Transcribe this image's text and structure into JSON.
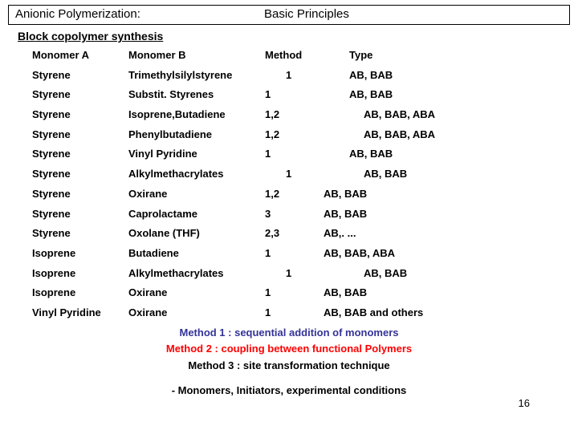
{
  "header": {
    "left": "Anionic Polymerization:",
    "right": "Basic Principles"
  },
  "subtitle": "Block copolymer synthesis",
  "table": {
    "headers": [
      "Monomer A",
      "Monomer B",
      "Method",
      "Type"
    ],
    "rows": [
      [
        "Styrene",
        "Trimethylsilylstyrene",
        "1",
        "AB, BAB"
      ],
      [
        "Styrene",
        "Substit. Styrenes",
        "1",
        "AB, BAB"
      ],
      [
        "Styrene",
        "Isoprene,Butadiene",
        "1,2",
        "AB, BAB, ABA"
      ],
      [
        "Styrene",
        "Phenylbutadiene",
        "1,2",
        "AB, BAB, ABA"
      ],
      [
        "Styrene",
        "Vinyl Pyridine",
        "1",
        "AB, BAB"
      ],
      [
        "Styrene",
        "Alkylmethacrylates",
        "1",
        "AB, BAB"
      ],
      [
        "Styrene",
        "Oxirane",
        "1,2",
        "AB, BAB"
      ],
      [
        "Styrene",
        "Caprolactame",
        "3",
        "AB, BAB"
      ],
      [
        "Styrene",
        "Oxolane (THF)",
        "2,3",
        "AB,. ..."
      ],
      [
        "Isoprene",
        "Butadiene",
        "1",
        "AB, BAB, ABA"
      ],
      [
        "Isoprene",
        "Alkylmethacrylates",
        "1",
        "AB, BAB"
      ],
      [
        "Isoprene",
        "Oxirane",
        "1",
        "AB, BAB"
      ],
      [
        "Vinyl Pyridine",
        "Oxirane",
        "1",
        "AB, BAB  and others"
      ]
    ],
    "method_col_shift": [
      26,
      0,
      0,
      0,
      0,
      26,
      0,
      0,
      0,
      0,
      26,
      0,
      0
    ],
    "type_col_shift": [
      0,
      0,
      18,
      18,
      0,
      18,
      -32,
      -32,
      -32,
      -32,
      18,
      -32,
      -32
    ]
  },
  "methods": {
    "m1": "Method 1 : sequential addition of monomers",
    "m2": "Method 2 :  coupling between functional Polymers",
    "m3": "Method 3 : site transformation technique"
  },
  "footer": "- Monomers, Initiators, experimental conditions",
  "page_number": "16",
  "colors": {
    "m1": "#333399",
    "m2": "#ff0000",
    "m3": "#000000"
  }
}
